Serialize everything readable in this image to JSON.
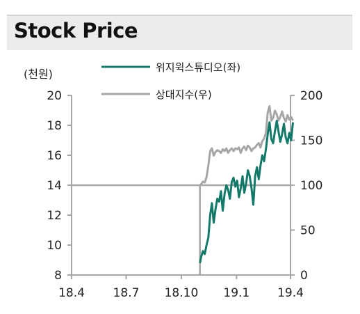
{
  "title": "Stock Price",
  "chart_data": {
    "type": "line",
    "x_ticks": [
      "18.4",
      "18.7",
      "18.10",
      "19.1",
      "19.4"
    ],
    "left_axis": {
      "unit_label": "(천원)",
      "ticks": [
        8,
        10,
        12,
        14,
        16,
        18,
        20
      ],
      "range": [
        8,
        20
      ]
    },
    "right_axis": {
      "ticks": [
        0,
        50,
        100,
        150,
        200
      ],
      "range": [
        0,
        200
      ]
    },
    "xlim": [
      "2018-04",
      "2019-04"
    ],
    "grid": false,
    "legend_position": "top",
    "reference_line": {
      "axis": "left",
      "value": 14
    },
    "series": [
      {
        "name": "위지윅스튜디오(좌)",
        "axis": "left",
        "color": "#137a6a",
        "x": [
          "2018-11-01",
          "2018-11-03",
          "2018-11-06",
          "2018-11-09",
          "2018-11-12",
          "2018-11-15",
          "2018-11-18",
          "2018-11-21",
          "2018-11-24",
          "2018-11-27",
          "2018-11-30",
          "2018-12-03",
          "2018-12-06",
          "2018-12-09",
          "2018-12-12",
          "2018-12-15",
          "2018-12-18",
          "2018-12-21",
          "2018-12-24",
          "2018-12-27",
          "2018-12-30",
          "2019-01-02",
          "2019-01-05",
          "2019-01-08",
          "2019-01-11",
          "2019-01-14",
          "2019-01-17",
          "2019-01-20",
          "2019-01-23",
          "2019-01-26",
          "2019-01-29",
          "2019-02-01",
          "2019-02-04",
          "2019-02-07",
          "2019-02-10",
          "2019-02-13",
          "2019-02-16",
          "2019-02-19",
          "2019-02-22",
          "2019-02-25",
          "2019-02-28",
          "2019-03-03",
          "2019-03-06",
          "2019-03-09",
          "2019-03-12",
          "2019-03-15",
          "2019-03-18",
          "2019-03-21",
          "2019-03-24",
          "2019-03-27",
          "2019-03-30",
          "2019-04-02",
          "2019-04-05"
        ],
        "values": [
          8.8,
          9.2,
          9.6,
          9.4,
          10.0,
          10.5,
          12.0,
          12.8,
          11.5,
          12.4,
          13.1,
          12.9,
          13.6,
          12.3,
          13.4,
          14.0,
          13.7,
          13.1,
          14.2,
          14.5,
          13.9,
          14.3,
          13.2,
          13.8,
          14.6,
          13.5,
          14.1,
          15.0,
          14.6,
          13.8,
          12.7,
          14.6,
          15.2,
          14.4,
          15.3,
          16.0,
          15.6,
          16.4,
          17.4,
          18.2,
          17.1,
          16.8,
          17.6,
          18.3,
          17.6,
          16.9,
          17.4,
          18.1,
          17.2,
          16.8,
          17.5,
          17.0,
          18.2
        ]
      },
      {
        "name": "상대지수(우)",
        "axis": "right",
        "color": "#a6a6a6",
        "x": [
          "2018-11-01",
          "2018-11-03",
          "2018-11-06",
          "2018-11-09",
          "2018-11-12",
          "2018-11-15",
          "2018-11-18",
          "2018-11-21",
          "2018-11-24",
          "2018-11-27",
          "2018-11-30",
          "2018-12-03",
          "2018-12-06",
          "2018-12-09",
          "2018-12-12",
          "2018-12-15",
          "2018-12-18",
          "2018-12-21",
          "2018-12-24",
          "2018-12-27",
          "2018-12-30",
          "2019-01-02",
          "2019-01-05",
          "2019-01-08",
          "2019-01-11",
          "2019-01-14",
          "2019-01-17",
          "2019-01-20",
          "2019-01-23",
          "2019-01-26",
          "2019-01-29",
          "2019-02-01",
          "2019-02-04",
          "2019-02-07",
          "2019-02-10",
          "2019-02-13",
          "2019-02-16",
          "2019-02-19",
          "2019-02-22",
          "2019-02-25",
          "2019-02-28",
          "2019-03-03",
          "2019-03-06",
          "2019-03-09",
          "2019-03-12",
          "2019-03-15",
          "2019-03-18",
          "2019-03-21",
          "2019-03-24",
          "2019-03-27",
          "2019-03-30",
          "2019-04-02",
          "2019-04-05"
        ],
        "values": [
          100,
          101,
          104,
          103,
          109,
          122,
          138,
          141,
          133,
          137,
          139,
          138,
          136,
          140,
          138,
          141,
          136,
          139,
          141,
          138,
          141,
          140,
          142,
          136,
          141,
          143,
          139,
          144,
          142,
          138,
          141,
          142,
          145,
          147,
          142,
          149,
          152,
          158,
          181,
          188,
          172,
          175,
          183,
          179,
          172,
          176,
          182,
          175,
          171,
          178,
          173,
          176,
          172
        ]
      }
    ]
  }
}
